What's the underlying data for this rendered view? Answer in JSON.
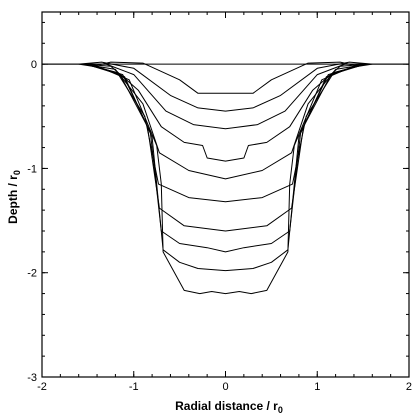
{
  "chart_data": {
    "type": "line",
    "xlabel": "Radial distance / r",
    "xlabel_sub": "0",
    "ylabel": "Depth / r",
    "ylabel_sub": "0",
    "xlim": [
      -2,
      2
    ],
    "ylim": [
      -3,
      0.5
    ],
    "xticks": [
      -2,
      -1,
      0,
      1,
      2
    ],
    "yticks": [
      0,
      -1,
      -2,
      -3
    ],
    "xtick_labels": [
      "-2",
      "-1",
      "0",
      "1",
      "2"
    ],
    "ytick_labels": [
      "0",
      "-1",
      "-2",
      "-3"
    ],
    "grid": false,
    "series": [
      {
        "x": [
          -2,
          -0.55,
          -0.3,
          0,
          0.3,
          0.55,
          2
        ],
        "y": [
          0,
          0,
          0,
          0,
          0,
          0,
          0
        ]
      },
      {
        "x": [
          -2,
          -1.6,
          -1.45,
          -1.25,
          -0.9,
          -0.5,
          -0.3,
          0,
          0.3,
          0.5,
          0.9,
          1.25,
          1.45,
          1.6,
          2
        ],
        "y": [
          0,
          0,
          -0.02,
          0.02,
          0.01,
          -0.15,
          -0.28,
          -0.28,
          -0.28,
          -0.15,
          0.01,
          0.02,
          -0.02,
          0,
          0
        ]
      },
      {
        "x": [
          -1.6,
          -1.35,
          -1.0,
          -0.6,
          -0.3,
          0,
          0.3,
          0.6,
          1.0,
          1.35,
          1.6
        ],
        "y": [
          0,
          0.02,
          -0.04,
          -0.3,
          -0.42,
          -0.45,
          -0.42,
          -0.3,
          -0.04,
          0.02,
          0
        ]
      },
      {
        "x": [
          -1.58,
          -1.3,
          -1.0,
          -0.65,
          -0.35,
          0,
          0.35,
          0.65,
          1.0,
          1.3,
          1.58
        ],
        "y": [
          0,
          0,
          -0.1,
          -0.45,
          -0.58,
          -0.62,
          -0.58,
          -0.45,
          -0.1,
          0,
          0
        ]
      },
      {
        "x": [
          -1.56,
          -1.25,
          -0.95,
          -0.7,
          -0.45,
          -0.25,
          -0.2,
          0,
          0.2,
          0.25,
          0.45,
          0.7,
          0.95,
          1.25,
          1.56
        ],
        "y": [
          0,
          -0.02,
          -0.25,
          -0.6,
          -0.75,
          -0.78,
          -0.9,
          -0.93,
          -0.9,
          -0.78,
          -0.75,
          -0.6,
          -0.25,
          -0.02,
          0
        ]
      },
      {
        "x": [
          -1.55,
          -1.2,
          -0.9,
          -0.72,
          -0.4,
          0,
          0.4,
          0.72,
          0.9,
          1.2,
          1.55
        ],
        "y": [
          0,
          -0.05,
          -0.38,
          -0.85,
          -1.02,
          -1.1,
          -1.02,
          -0.85,
          -0.38,
          -0.05,
          0
        ]
      },
      {
        "x": [
          -1.54,
          -1.18,
          -0.88,
          -0.73,
          -0.4,
          0,
          0.4,
          0.73,
          0.88,
          1.18,
          1.54
        ],
        "y": [
          0,
          -0.08,
          -0.5,
          -1.15,
          -1.28,
          -1.32,
          -1.28,
          -1.15,
          -0.5,
          -0.08,
          0
        ]
      },
      {
        "x": [
          -1.52,
          -1.15,
          -0.85,
          -0.72,
          -0.45,
          0,
          0.45,
          0.72,
          0.85,
          1.15,
          1.52
        ],
        "y": [
          0,
          -0.1,
          -0.6,
          -1.38,
          -1.55,
          -1.6,
          -1.55,
          -1.38,
          -0.6,
          -0.1,
          0
        ]
      },
      {
        "x": [
          -1.5,
          -1.12,
          -0.82,
          -0.7,
          -0.5,
          -0.2,
          0,
          0.2,
          0.5,
          0.7,
          0.82,
          1.12,
          1.5
        ],
        "y": [
          0,
          -0.1,
          -0.65,
          -1.6,
          -1.72,
          -1.76,
          -1.8,
          -1.76,
          -1.72,
          -1.6,
          -0.65,
          -0.1,
          0
        ]
      },
      {
        "x": [
          -1.48,
          -1.1,
          -0.8,
          -0.68,
          -0.5,
          -0.3,
          0,
          0.3,
          0.5,
          0.68,
          0.8,
          1.1,
          1.48
        ],
        "y": [
          0,
          -0.12,
          -0.7,
          -1.78,
          -1.9,
          -1.96,
          -1.98,
          -1.96,
          -1.9,
          -1.78,
          -0.7,
          -0.12,
          0
        ]
      },
      {
        "x": [
          -1.45,
          -1.05,
          -0.75,
          -0.7,
          -0.68,
          -0.45,
          -0.28,
          -0.15,
          0,
          0.15,
          0.28,
          0.45,
          0.68,
          0.7,
          0.75,
          1.05,
          1.45
        ],
        "y": [
          0,
          -0.15,
          -0.78,
          -1.15,
          -1.8,
          -2.17,
          -2.2,
          -2.18,
          -2.2,
          -2.18,
          -2.2,
          -2.17,
          -1.8,
          -1.15,
          -0.78,
          -0.15,
          0
        ]
      }
    ]
  }
}
